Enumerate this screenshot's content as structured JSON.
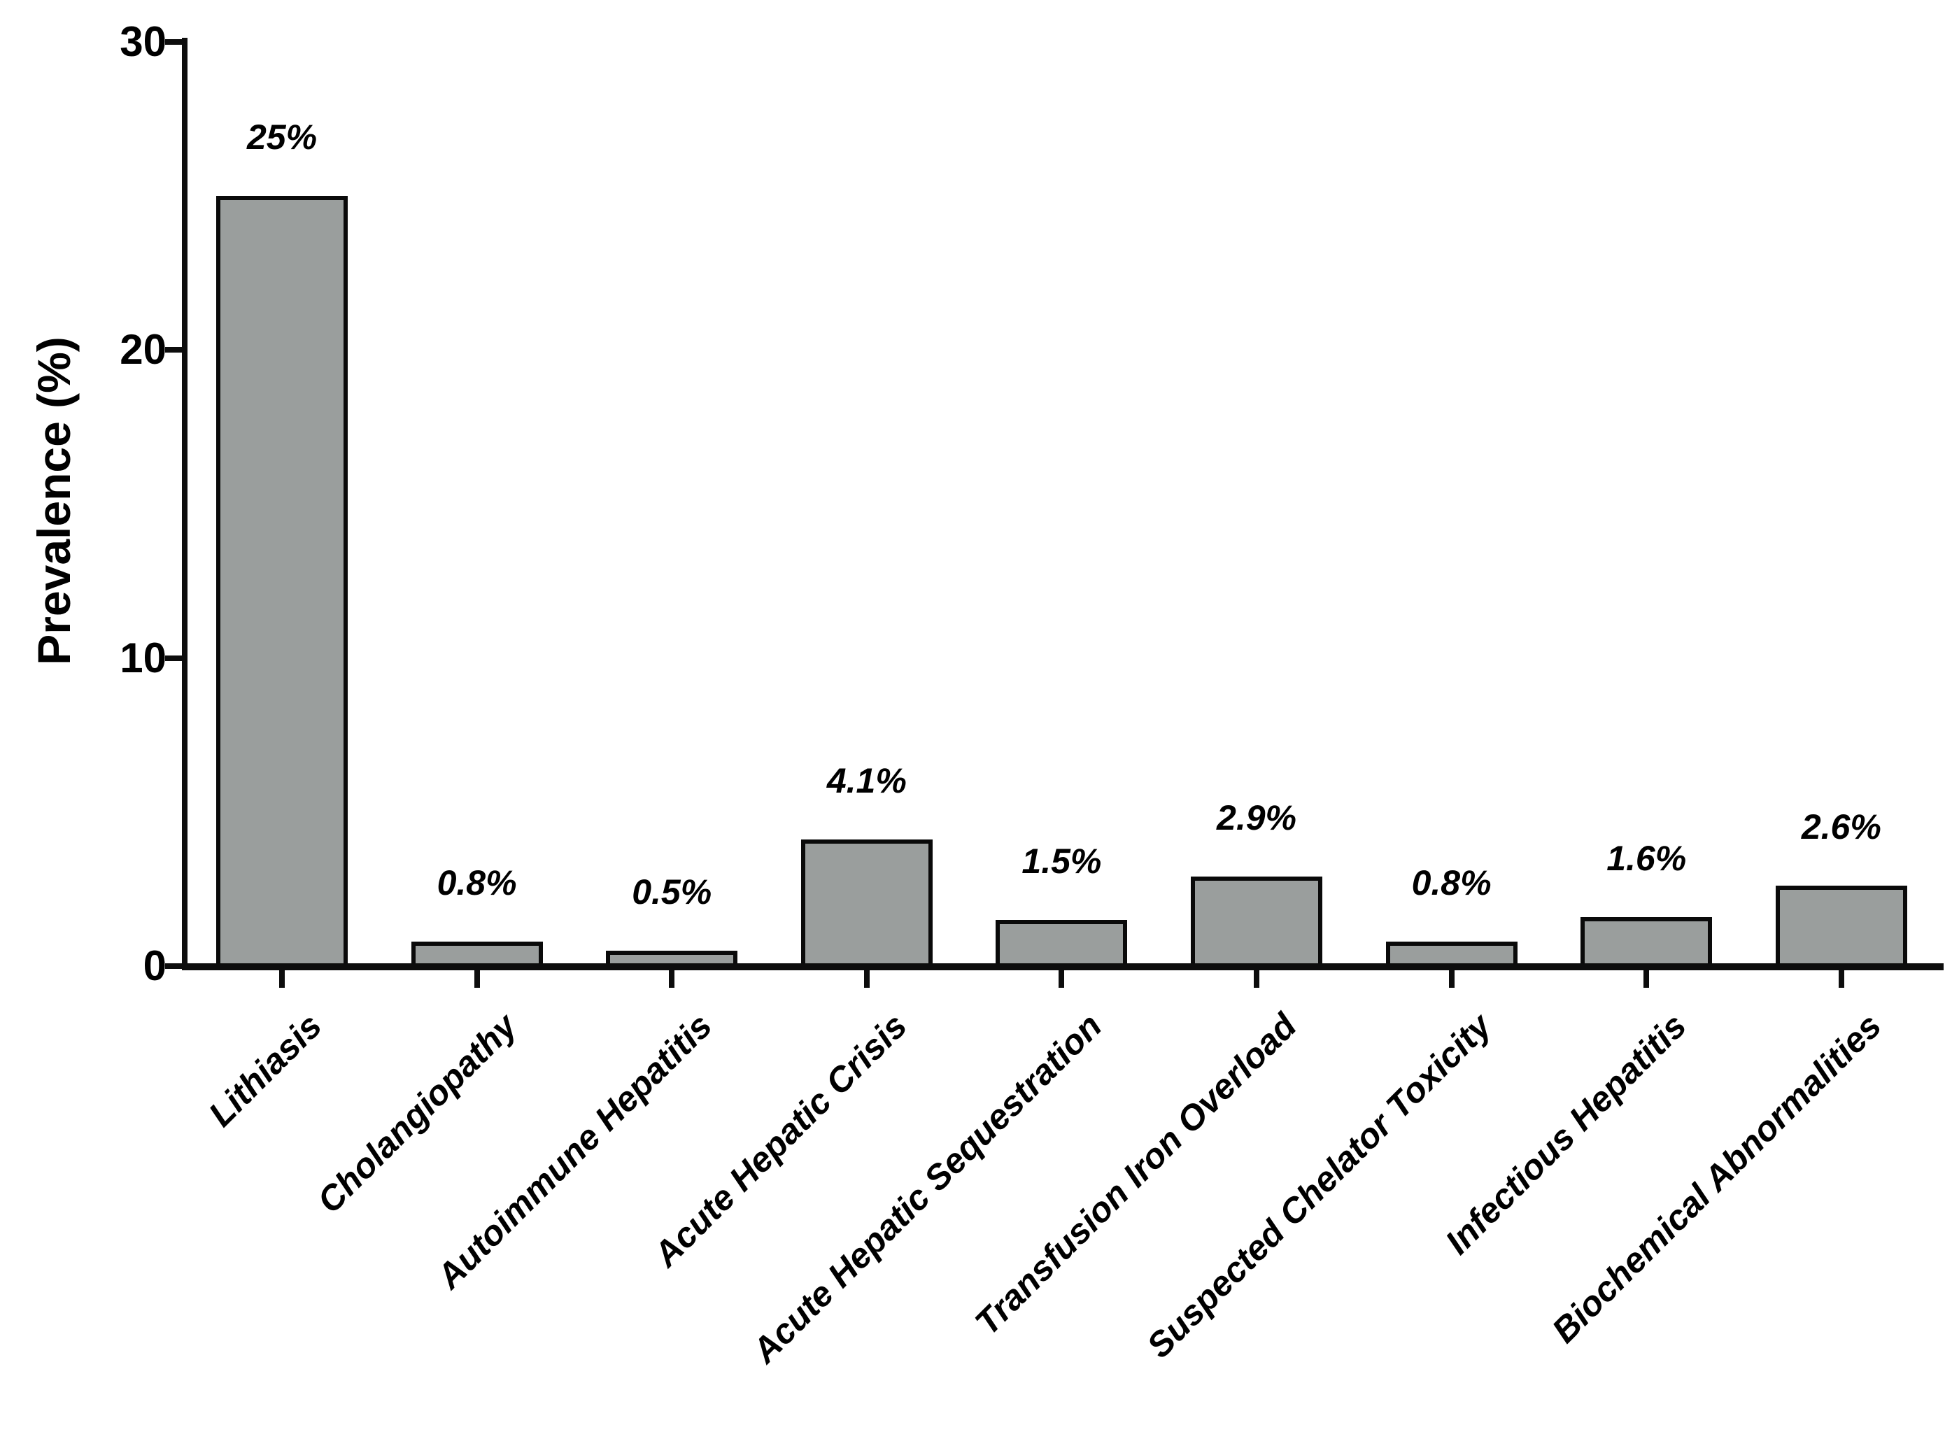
{
  "figure": {
    "background_color": "#ffffff",
    "text_color": "#000000",
    "axis_color": "#0d0d0d"
  },
  "chart_data": {
    "type": "bar",
    "title": "",
    "xlabel": "",
    "ylabel": "Prevalence (%)",
    "ylim": [
      0,
      30
    ],
    "y_ticks": [
      0,
      10,
      20,
      30
    ],
    "grid": false,
    "legend": "none",
    "bar_color": "#9a9e9d",
    "bar_border_color": "#0a0a0a",
    "categories": [
      "Lithiasis",
      "Cholangiopathy",
      "Autoimmune Hepatitis",
      "Acute Hepatic Crisis",
      "Acute Hepatic Sequestration",
      "Transfusion Iron Overload",
      "Suspected Chelator Toxicity",
      "Infectious Hepatitis",
      "Biochemical Abnormalities"
    ],
    "values": [
      25,
      0.8,
      0.5,
      4.1,
      1.5,
      2.9,
      0.8,
      1.6,
      2.6
    ],
    "value_labels": [
      "25%",
      "0.8%",
      "0.5%",
      "4.1%",
      "1.5%",
      "2.9%",
      "0.8%",
      "1.6%",
      "2.6%"
    ]
  }
}
